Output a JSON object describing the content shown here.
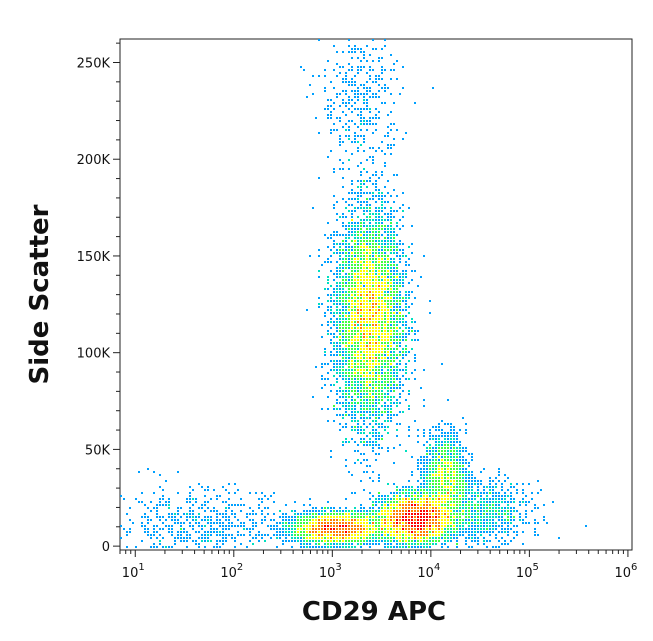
{
  "chart_data": {
    "type": "scatter",
    "plot_style": "flow-cytometry density dot plot",
    "xlabel": "CD29 APC",
    "ylabel": "Side Scatter",
    "x_scale": "log",
    "xlim": [
      7,
      1100000
    ],
    "x_ticks": [
      {
        "value": 10,
        "base": "10",
        "exp": "1"
      },
      {
        "value": 100,
        "base": "10",
        "exp": "2"
      },
      {
        "value": 1000,
        "base": "10",
        "exp": "3"
      },
      {
        "value": 10000,
        "base": "10",
        "exp": "4"
      },
      {
        "value": 100000,
        "base": "10",
        "exp": "5"
      },
      {
        "value": 1000000,
        "base": "10",
        "exp": "6"
      }
    ],
    "y_scale": "linear",
    "ylim": [
      -2000,
      262143
    ],
    "y_ticks": [
      {
        "value": 0,
        "label": "0"
      },
      {
        "value": 50000,
        "label": "50K"
      },
      {
        "value": 100000,
        "label": "100K"
      },
      {
        "value": 150000,
        "label": "150K"
      },
      {
        "value": 200000,
        "label": "200K"
      },
      {
        "value": 250000,
        "label": "250K"
      }
    ],
    "grid": false,
    "legend": "none",
    "color_map": [
      "#0000ff",
      "#00a0ff",
      "#00e0c0",
      "#40ff40",
      "#ffff00",
      "#ff8000",
      "#ff0000"
    ],
    "populations": [
      {
        "log_x": 3.38,
        "y": 118000,
        "sd_log_x": 0.17,
        "sd_y": 27000,
        "weight": 0.4
      },
      {
        "log_x": 3.05,
        "y": 9000,
        "sd_log_x": 0.22,
        "sd_y": 4000,
        "weight": 0.17
      },
      {
        "log_x": 3.85,
        "y": 14000,
        "sd_log_x": 0.18,
        "sd_y": 6000,
        "weight": 0.27
      },
      {
        "log_x": 4.15,
        "y": 36000,
        "sd_log_x": 0.11,
        "sd_y": 11000,
        "weight": 0.07
      },
      {
        "log_x": 4.5,
        "y": 17000,
        "sd_log_x": 0.25,
        "sd_y": 8000,
        "weight": 0.04
      },
      {
        "log_x": 1.7,
        "y": 10000,
        "sd_log_x": 0.45,
        "sd_y": 10000,
        "weight": 0.025
      },
      {
        "log_x": 3.3,
        "y": 230000,
        "sd_log_x": 0.2,
        "sd_y": 20000,
        "weight": 0.015
      }
    ]
  }
}
